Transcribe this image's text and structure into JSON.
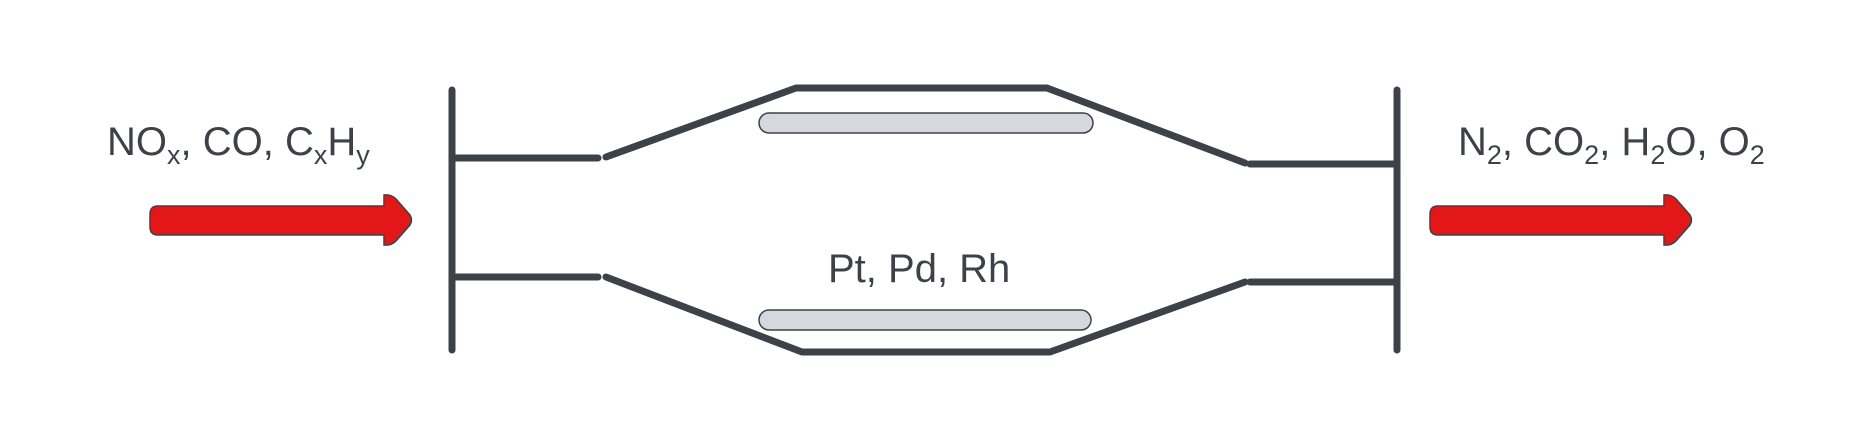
{
  "inlet": {
    "label_parts": [
      {
        "text": "NO",
        "sub": false
      },
      {
        "text": "x",
        "sub": true
      },
      {
        "text": ", CO, C",
        "sub": false
      },
      {
        "text": "x",
        "sub": true
      },
      {
        "text": "H",
        "sub": false
      },
      {
        "text": "y",
        "sub": true
      }
    ]
  },
  "outlet": {
    "label_parts": [
      {
        "text": "N",
        "sub": false
      },
      {
        "text": "2",
        "sub": true
      },
      {
        "text": ", CO",
        "sub": false
      },
      {
        "text": "2",
        "sub": true
      },
      {
        "text": ", H",
        "sub": false
      },
      {
        "text": "2",
        "sub": true
      },
      {
        "text": "O, O",
        "sub": false
      },
      {
        "text": "2",
        "sub": true
      }
    ]
  },
  "catalyst": {
    "label": "Pt, Pd, Rh"
  },
  "colors": {
    "line": "#3d4249",
    "arrow": "#e31717",
    "substrate_fill": "#d5d8de"
  }
}
